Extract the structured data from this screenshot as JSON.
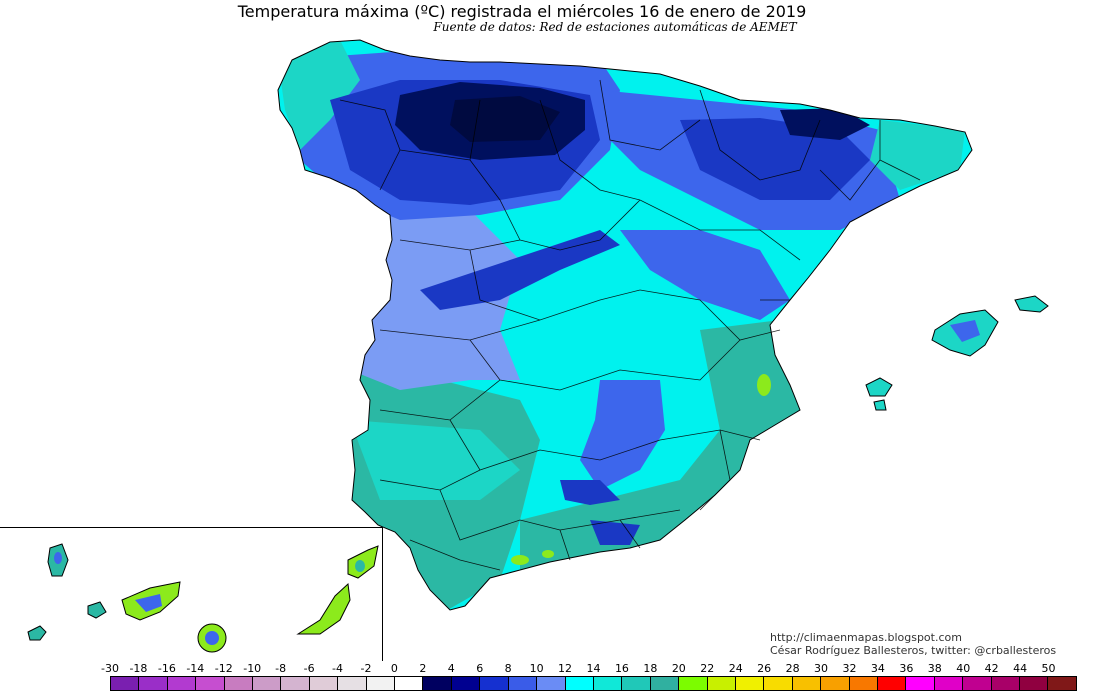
{
  "map": {
    "title": "Temperatura máxima (ºC) registrada el miércoles 16 de enero de 2019",
    "subtitle": "Fuente de datos: Red de estaciones automáticas de AEMET",
    "credit_line1": "http://climaenmapas.blogspot.com",
    "credit_line2": "César Rodríguez Ballesteros, twitter: @crballesteros"
  },
  "legend": {
    "labels": [
      "-30",
      "-18",
      "-16",
      "-14",
      "-12",
      "-10",
      "-8",
      "-6",
      "-4",
      "-2",
      "0",
      "2",
      "4",
      "6",
      "8",
      "10",
      "12",
      "14",
      "16",
      "18",
      "20",
      "22",
      "24",
      "26",
      "28",
      "30",
      "32",
      "34",
      "36",
      "38",
      "40",
      "42",
      "44",
      "50"
    ],
    "colors": [
      "#7a1fb0",
      "#9a2ec8",
      "#b23ad0",
      "#c64ed0",
      "#c87cc0",
      "#cc9cc8",
      "#d4b4d0",
      "#e0ccd8",
      "#e6e0e4",
      "#f2f2f2",
      "#ffffff",
      "#000060",
      "#000090",
      "#1530d0",
      "#3a5ce8",
      "#6a8cf5",
      "#00ffff",
      "#10e8d8",
      "#20c8b8",
      "#30b0a0",
      "#7cfc00",
      "#c8f000",
      "#f0f000",
      "#f8dc00",
      "#f8c000",
      "#f8a000",
      "#f87800",
      "#ff0000",
      "#ff00ff",
      "#e000c8",
      "#c00090",
      "#a80068",
      "#900040",
      "#801818"
    ]
  },
  "palette": {
    "deep_navy": "#00105e",
    "dark_blue": "#1a38c4",
    "blue": "#3d66ec",
    "light_blue": "#7b9cf4",
    "cyan": "#00f2ee",
    "teal_light": "#1cd6c6",
    "teal": "#2bb8a4",
    "green": "#8cea1c",
    "border": "#000000"
  }
}
